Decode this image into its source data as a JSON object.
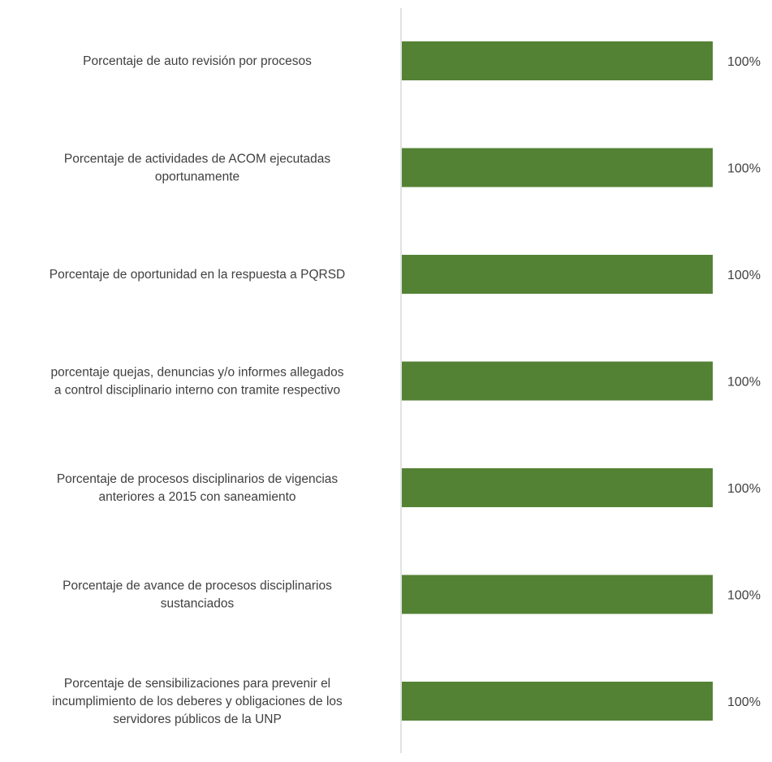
{
  "chart_data": {
    "type": "bar",
    "orientation": "horizontal",
    "categories": [
      [
        "Porcentaje de auto revisión por procesos"
      ],
      [
        "Porcentaje de actividades de ACOM ejecutadas",
        "oportunamente"
      ],
      [
        "Porcentaje de oportunidad en la respuesta a PQRSD"
      ],
      [
        "porcentaje quejas, denuncias y/o informes allegados",
        "a control disciplinario interno con tramite respectivo"
      ],
      [
        "Porcentaje de procesos disciplinarios de vigencias",
        "anteriores a 2015 con saneamiento"
      ],
      [
        "Porcentaje de avance de procesos disciplinarios",
        "sustanciados"
      ],
      [
        "Porcentaje de sensibilizaciones para prevenir el",
        "incumplimiento de los deberes y obligaciones de los",
        "servidores públicos de la UNP"
      ]
    ],
    "values": [
      100,
      100,
      100,
      100,
      100,
      100,
      100
    ],
    "data_labels": [
      "100%",
      "100%",
      "100%",
      "100%",
      "100%",
      "100%",
      "100%"
    ],
    "xlim": [
      0,
      100
    ],
    "bar_color": "#548235",
    "axis_color": "#d9d9d9",
    "label_color": "#404040",
    "grid": false,
    "legend": false
  }
}
